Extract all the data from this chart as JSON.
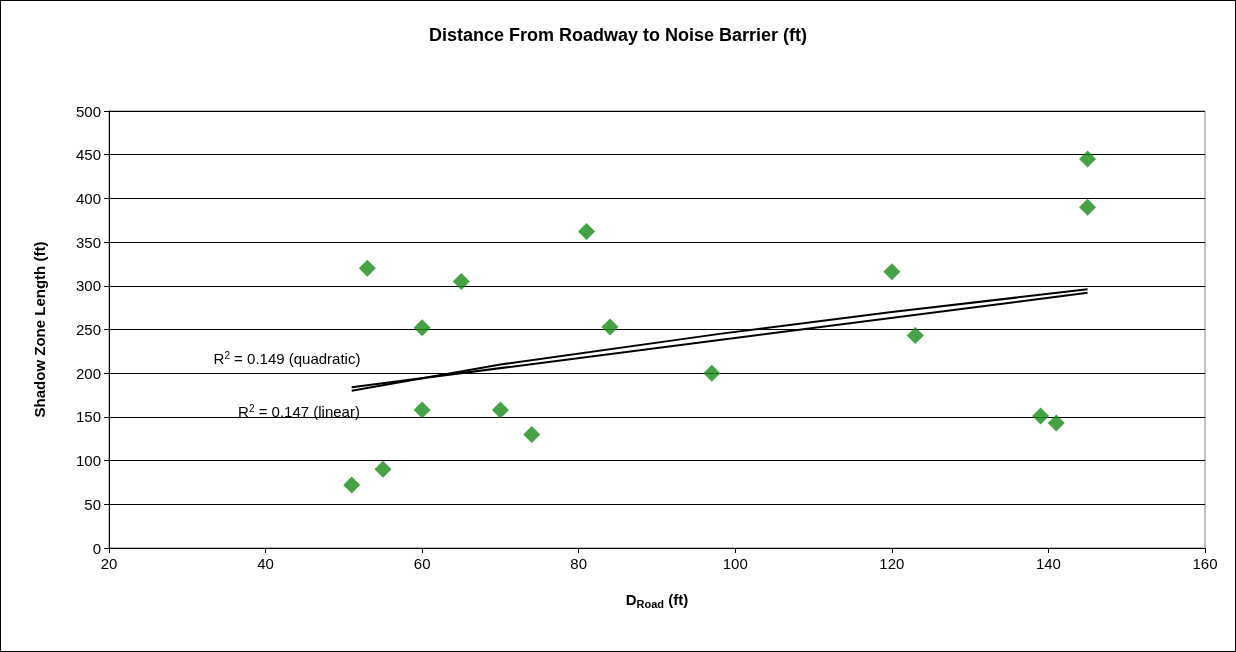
{
  "chart_data": {
    "type": "scatter",
    "title": "Distance From Roadway to Noise Barrier (ft)",
    "xlabel": "D$_{Road}$ (ft)",
    "ylabel": "Shadow Zone Length (ft)",
    "series": [
      {
        "color": "#168c16",
        "marker": "diamond",
        "x": [
          51,
          53,
          55,
          60,
          60,
          65,
          70,
          74,
          81,
          84,
          97,
          120,
          123,
          139,
          141,
          145,
          145
        ],
        "values": [
          72,
          320,
          90,
          252,
          158,
          305,
          158,
          130,
          362,
          253,
          200,
          316,
          243,
          151,
          143,
          445,
          390
        ]
      },
      {
        "type": "line",
        "color": "#000000",
        "marker": "none",
        "line_style": "solid",
        "x": [
          51,
          70,
          98,
          120,
          145
        ],
        "values": [
          180,
          210,
          245,
          270,
          296
        ]
      },
      {
        "type": "line",
        "color": "#000000",
        "marker": "none",
        "line_style": "solid",
        "x": [
          51,
          145
        ],
        "values": [
          184,
          292
        ]
      }
    ],
    "xlim": [
      20,
      160
    ],
    "xticks": [
      20,
      40,
      60,
      80,
      100,
      120,
      140,
      160
    ],
    "ylim": [
      0,
      500
    ],
    "yticks": [
      0,
      50,
      100,
      150,
      200,
      250,
      300,
      350,
      400,
      450,
      500
    ],
    "grid": "y",
    "annotations": [
      "R$^{2}$ = 0.149 (quadratic)",
      "R$^{2}$ = 0.147 (linear)"
    ]
  }
}
